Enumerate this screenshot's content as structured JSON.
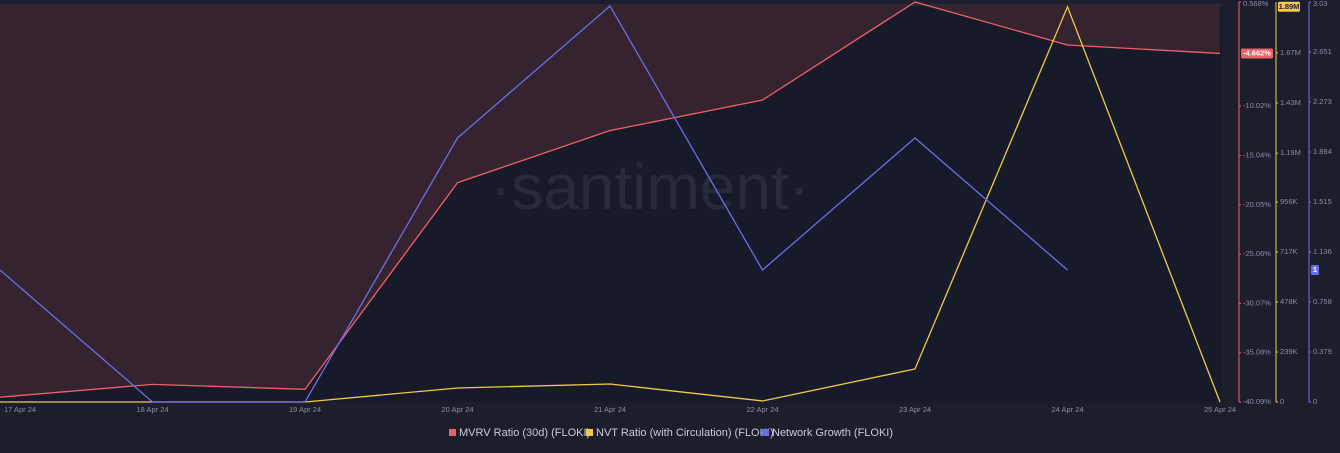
{
  "chart_data": {
    "type": "line",
    "watermark": "·santiment·",
    "categories": [
      "17 Apr 24",
      "18 Apr 24",
      "19 Apr 24",
      "20 Apr 24",
      "21 Apr 24",
      "22 Apr 24",
      "23 Apr 24",
      "24 Apr 24",
      "25 Apr 24"
    ],
    "series": [
      {
        "name": "MVRV Ratio (30d) (FLOKI)",
        "color": "#ef5f67",
        "axis": "y",
        "fill_above": "#35232f",
        "values": [
          -39.6,
          -38.3,
          -38.8,
          -17.8,
          -12.5,
          -9.4,
          0.568,
          -3.8,
          -4.662
        ],
        "tag": {
          "value": -4.662,
          "label": "-4.662%"
        }
      },
      {
        "name": "NVT Ratio (with Circulation) (FLOKI)",
        "color": "#f2c94c",
        "axis": "y2",
        "values": [
          0,
          0,
          0,
          67000,
          86000,
          5000,
          158000,
          1890000,
          0
        ],
        "tag": {
          "value": 1890000,
          "label": "1.89M"
        }
      },
      {
        "name": "Network Growth (FLOKI)",
        "color": "#6a6fe8",
        "axis": "y3",
        "values": [
          1,
          0,
          0,
          2,
          3,
          1,
          2,
          1,
          null
        ],
        "tag": {
          "value": 1,
          "label": "1"
        }
      }
    ],
    "ylim": [
      -40.09,
      0.568
    ],
    "yticks": [
      {
        "value": -40.09,
        "label": "-40.09%"
      },
      {
        "value": -35.08,
        "label": "-35.08%"
      },
      {
        "value": -30.07,
        "label": "-30.07%"
      },
      {
        "value": -25.06,
        "label": "-25.06%"
      },
      {
        "value": -20.05,
        "label": "-20.05%"
      },
      {
        "value": -15.04,
        "label": "-15.04%"
      },
      {
        "value": -10.02,
        "label": "-10.02%"
      },
      {
        "value": 0.568,
        "label": "0.568%"
      }
    ],
    "y2lim": [
      0,
      1913000
    ],
    "y2ticks": [
      0,
      {
        "value": 239000,
        "label": "239K"
      },
      {
        "value": 478000,
        "label": "478K"
      },
      {
        "value": 717000,
        "label": "717K"
      },
      {
        "value": 956000,
        "label": "956K"
      },
      {
        "value": 1190000,
        "label": "1.19M"
      },
      {
        "value": 1430000,
        "label": "1.43M"
      },
      {
        "value": 1670000,
        "label": "1.67M"
      }
    ],
    "y3lim": [
      0,
      3.03
    ],
    "y3ticks": [
      0,
      0.379,
      0.758,
      1.136,
      1.515,
      1.894,
      2.273,
      2.651,
      3.03
    ]
  }
}
